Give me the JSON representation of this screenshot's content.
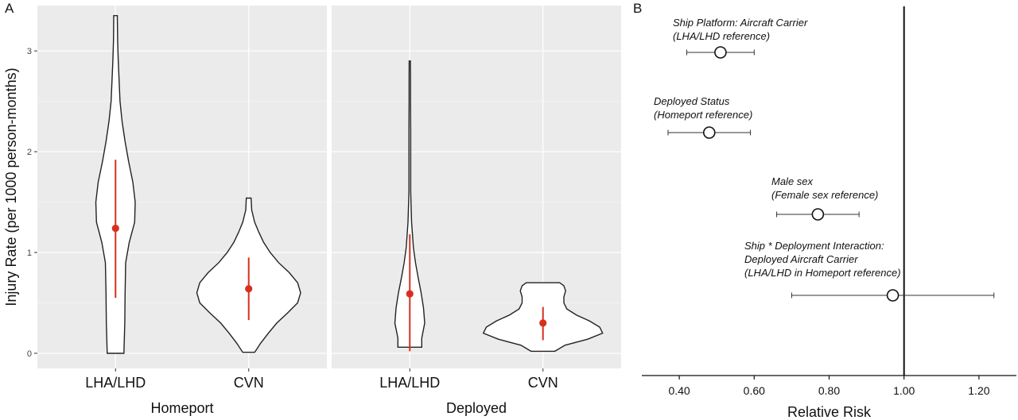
{
  "panel_a_letter": "A",
  "panel_b_letter": "B",
  "chart_data": [
    {
      "type": "violin",
      "ylabel": "Injury Rate (per 1000 person-months)",
      "ylim": [
        -0.15,
        3.45
      ],
      "yticks": [
        0,
        1,
        2,
        3
      ],
      "grid": true,
      "facets": [
        {
          "label": "Homeport",
          "categories": [
            {
              "name": "LHA/LHD",
              "min": 0.0,
              "max": 3.35,
              "density": [
                [
                  0.0,
                  0.14
                ],
                [
                  0.3,
                  0.155
                ],
                [
                  0.6,
                  0.16
                ],
                [
                  0.9,
                  0.17
                ],
                [
                  1.1,
                  0.23
                ],
                [
                  1.3,
                  0.32
                ],
                [
                  1.5,
                  0.33
                ],
                [
                  1.7,
                  0.29
                ],
                [
                  1.9,
                  0.22
                ],
                [
                  2.1,
                  0.16
                ],
                [
                  2.3,
                  0.11
                ],
                [
                  2.5,
                  0.075
                ],
                [
                  2.7,
                  0.06
                ],
                [
                  2.9,
                  0.045
                ],
                [
                  3.1,
                  0.035
                ],
                [
                  3.35,
                  0.03
                ]
              ],
              "mean": 1.24,
              "lower": 0.55,
              "upper": 1.92
            },
            {
              "name": "CVN",
              "min": 0.01,
              "max": 1.54,
              "density": [
                [
                  0.01,
                  0.1
                ],
                [
                  0.1,
                  0.2
                ],
                [
                  0.2,
                  0.33
                ],
                [
                  0.3,
                  0.47
                ],
                [
                  0.4,
                  0.65
                ],
                [
                  0.5,
                  0.82
                ],
                [
                  0.6,
                  0.87
                ],
                [
                  0.7,
                  0.82
                ],
                [
                  0.8,
                  0.68
                ],
                [
                  0.9,
                  0.5
                ],
                [
                  1.0,
                  0.36
                ],
                [
                  1.1,
                  0.25
                ],
                [
                  1.2,
                  0.17
                ],
                [
                  1.3,
                  0.1
                ],
                [
                  1.42,
                  0.05
                ],
                [
                  1.54,
                  0.04
                ]
              ],
              "mean": 0.64,
              "lower": 0.33,
              "upper": 0.95
            }
          ]
        },
        {
          "label": "Deployed",
          "categories": [
            {
              "name": "LHA/LHD",
              "min": 0.06,
              "max": 2.9,
              "density": [
                [
                  0.06,
                  0.2
                ],
                [
                  0.15,
                  0.2
                ],
                [
                  0.3,
                  0.25
                ],
                [
                  0.45,
                  0.23
                ],
                [
                  0.6,
                  0.19
                ],
                [
                  0.75,
                  0.14
                ],
                [
                  0.9,
                  0.095
                ],
                [
                  1.05,
                  0.06
                ],
                [
                  1.3,
                  0.03
                ],
                [
                  1.6,
                  0.015
                ],
                [
                  1.9,
                  0.015
                ],
                [
                  2.2,
                  0.015
                ],
                [
                  2.5,
                  0.012
                ],
                [
                  2.75,
                  0.012
                ],
                [
                  2.9,
                  0.01
                ]
              ],
              "mean": 0.59,
              "lower": 0.02,
              "upper": 1.18
            },
            {
              "name": "CVN",
              "min": 0.02,
              "max": 0.7,
              "density": [
                [
                  0.02,
                  0.2
                ],
                [
                  0.08,
                  0.37
                ],
                [
                  0.14,
                  0.75
                ],
                [
                  0.2,
                  1.0
                ],
                [
                  0.26,
                  0.95
                ],
                [
                  0.32,
                  0.78
                ],
                [
                  0.38,
                  0.56
                ],
                [
                  0.44,
                  0.4
                ],
                [
                  0.5,
                  0.35
                ],
                [
                  0.56,
                  0.35
                ],
                [
                  0.62,
                  0.38
                ],
                [
                  0.67,
                  0.35
                ],
                [
                  0.7,
                  0.28
                ]
              ],
              "mean": 0.3,
              "lower": 0.13,
              "upper": 0.46
            }
          ]
        }
      ]
    },
    {
      "type": "forest",
      "xlabel": "Relative Risk",
      "xlim": [
        0.3,
        1.3
      ],
      "xticks": [
        "0.40",
        "0.60",
        "0.80",
        "1.00",
        "1.20"
      ],
      "reference": 1.0,
      "estimates": [
        {
          "label_lines": [
            "Ship Platform: Aircraft Carrier",
            "(LHA/LHD reference)"
          ],
          "rr": 0.51,
          "lower": 0.42,
          "upper": 0.6
        },
        {
          "label_lines": [
            "Deployed Status",
            "(Homeport reference)"
          ],
          "rr": 0.48,
          "lower": 0.37,
          "upper": 0.59
        },
        {
          "label_lines": [
            "Male sex",
            "(Female sex reference)"
          ],
          "rr": 0.77,
          "lower": 0.66,
          "upper": 0.88
        },
        {
          "label_lines": [
            "Ship * Deployment Interaction:",
            "Deployed Aircraft Carrier",
            "(LHA/LHD in Homeport reference)"
          ],
          "rr": 0.97,
          "lower": 0.7,
          "upper": 1.24
        }
      ]
    }
  ]
}
